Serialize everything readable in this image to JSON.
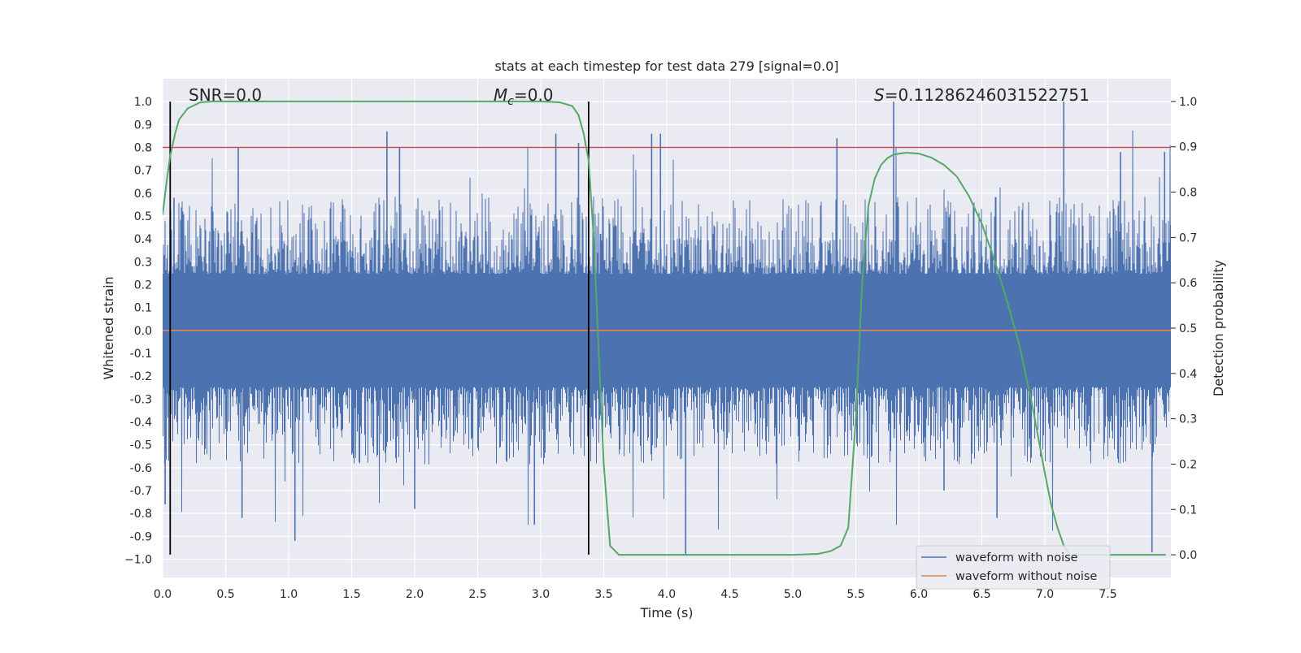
{
  "chart_data": {
    "type": "line",
    "title": "stats at each timestep for test data 279 [signal=0.0]",
    "xlabel": "Time (s)",
    "ylabel": "Whitened strain",
    "ylabel_right": "Detection probability",
    "xlim": [
      0.0,
      8.0
    ],
    "ylim": [
      -1.08,
      1.1
    ],
    "ylim_right": [
      -0.05,
      1.05
    ],
    "x_ticks": [
      "0.0",
      "0.5",
      "1.0",
      "1.5",
      "2.0",
      "2.5",
      "3.0",
      "3.5",
      "4.0",
      "4.5",
      "5.0",
      "5.5",
      "6.0",
      "6.5",
      "7.0",
      "7.5"
    ],
    "x_tick_values": [
      0,
      0.5,
      1,
      1.5,
      2,
      2.5,
      3,
      3.5,
      4,
      4.5,
      5,
      5.5,
      6,
      6.5,
      7,
      7.5
    ],
    "y_ticks": [
      "1.0",
      "0.9",
      "0.8",
      "0.7",
      "0.6",
      "0.5",
      "0.4",
      "0.3",
      "0.2",
      "0.1",
      "0.0",
      "-0.1",
      "-0.2",
      "-0.3",
      "-0.4",
      "-0.5",
      "-0.6",
      "-0.7",
      "-0.8",
      "-0.9",
      "−1.0"
    ],
    "y_tick_values": [
      1.0,
      0.9,
      0.8,
      0.7,
      0.6,
      0.5,
      0.4,
      0.3,
      0.2,
      0.1,
      0.0,
      -0.1,
      -0.2,
      -0.3,
      -0.4,
      -0.5,
      -0.6,
      -0.7,
      -0.8,
      -0.9,
      -1.0
    ],
    "y_right_ticks": [
      "1.0",
      "0.9",
      "0.8",
      "0.7",
      "0.6",
      "0.5",
      "0.4",
      "0.3",
      "0.2",
      "0.1",
      "0.0"
    ],
    "y_right_tick_values": [
      1.0,
      0.9,
      0.8,
      0.7,
      0.6,
      0.5,
      0.4,
      0.3,
      0.2,
      0.1,
      0.0
    ],
    "annotations": {
      "snr": "SNR=0.0",
      "mc_symbol": "M",
      "mc_sub": "c",
      "mc_value": "=0.0",
      "s_symbol": "S",
      "s_value": "=0.11286246031522751"
    },
    "threshold_line": {
      "y": 0.8,
      "color": "#c44e52"
    },
    "vertical_lines": [
      0.06,
      3.38
    ],
    "noisy_waveform": {
      "name": "waveform with noise",
      "color": "#4c72b0",
      "envelope_typical": 0.45,
      "spike_points": [
        [
          0.02,
          -0.76
        ],
        [
          0.09,
          0.58
        ],
        [
          0.6,
          0.8
        ],
        [
          0.63,
          -0.82
        ],
        [
          1.05,
          -0.92
        ],
        [
          1.78,
          0.87
        ],
        [
          1.88,
          0.8
        ],
        [
          2.0,
          -0.78
        ],
        [
          2.95,
          -0.85
        ],
        [
          3.12,
          0.86
        ],
        [
          3.3,
          0.82
        ],
        [
          3.88,
          0.86
        ],
        [
          3.95,
          0.86
        ],
        [
          4.15,
          -0.98
        ],
        [
          5.35,
          0.84
        ],
        [
          5.8,
          1.0
        ],
        [
          6.2,
          -0.7
        ],
        [
          6.62,
          -0.82
        ],
        [
          7.15,
          1.0
        ],
        [
          7.6,
          0.78
        ],
        [
          7.85,
          -0.97
        ],
        [
          7.95,
          0.78
        ]
      ]
    },
    "clean_waveform": {
      "name": "waveform without noise",
      "color": "#dd8452",
      "value": 0.0
    },
    "detection_probability": {
      "color": "#55a868",
      "x": [
        0.0,
        0.03,
        0.06,
        0.1,
        0.13,
        0.2,
        0.3,
        0.4,
        0.8,
        1.5,
        2.5,
        3.0,
        3.15,
        3.25,
        3.3,
        3.34,
        3.38,
        3.42,
        3.46,
        3.5,
        3.55,
        3.62,
        3.7,
        4.0,
        4.5,
        5.0,
        5.2,
        5.3,
        5.38,
        5.44,
        5.5,
        5.55,
        5.6,
        5.65,
        5.7,
        5.75,
        5.8,
        5.9,
        6.0,
        6.1,
        6.2,
        6.3,
        6.4,
        6.5,
        6.6,
        6.7,
        6.8,
        6.9,
        7.0,
        7.05,
        7.1,
        7.15,
        7.2,
        7.3,
        7.5,
        7.96
      ],
      "y": [
        0.75,
        0.82,
        0.88,
        0.93,
        0.96,
        0.985,
        0.998,
        1.0,
        1.0,
        1.0,
        1.0,
        1.0,
        0.998,
        0.99,
        0.97,
        0.93,
        0.87,
        0.7,
        0.45,
        0.2,
        0.02,
        0.0,
        0.0,
        0.0,
        0.0,
        0.0,
        0.002,
        0.008,
        0.02,
        0.06,
        0.3,
        0.6,
        0.77,
        0.83,
        0.86,
        0.875,
        0.883,
        0.887,
        0.885,
        0.876,
        0.86,
        0.835,
        0.79,
        0.73,
        0.65,
        0.56,
        0.46,
        0.33,
        0.18,
        0.11,
        0.06,
        0.02,
        0.0,
        0.0,
        0.0,
        0.0
      ]
    },
    "legend": {
      "position": "bottom-right",
      "entries": [
        {
          "label": "waveform with noise",
          "color": "#4c72b0"
        },
        {
          "label": "waveform without noise",
          "color": "#dd8452"
        }
      ]
    },
    "grid": true,
    "background": "#eaeaf2"
  }
}
